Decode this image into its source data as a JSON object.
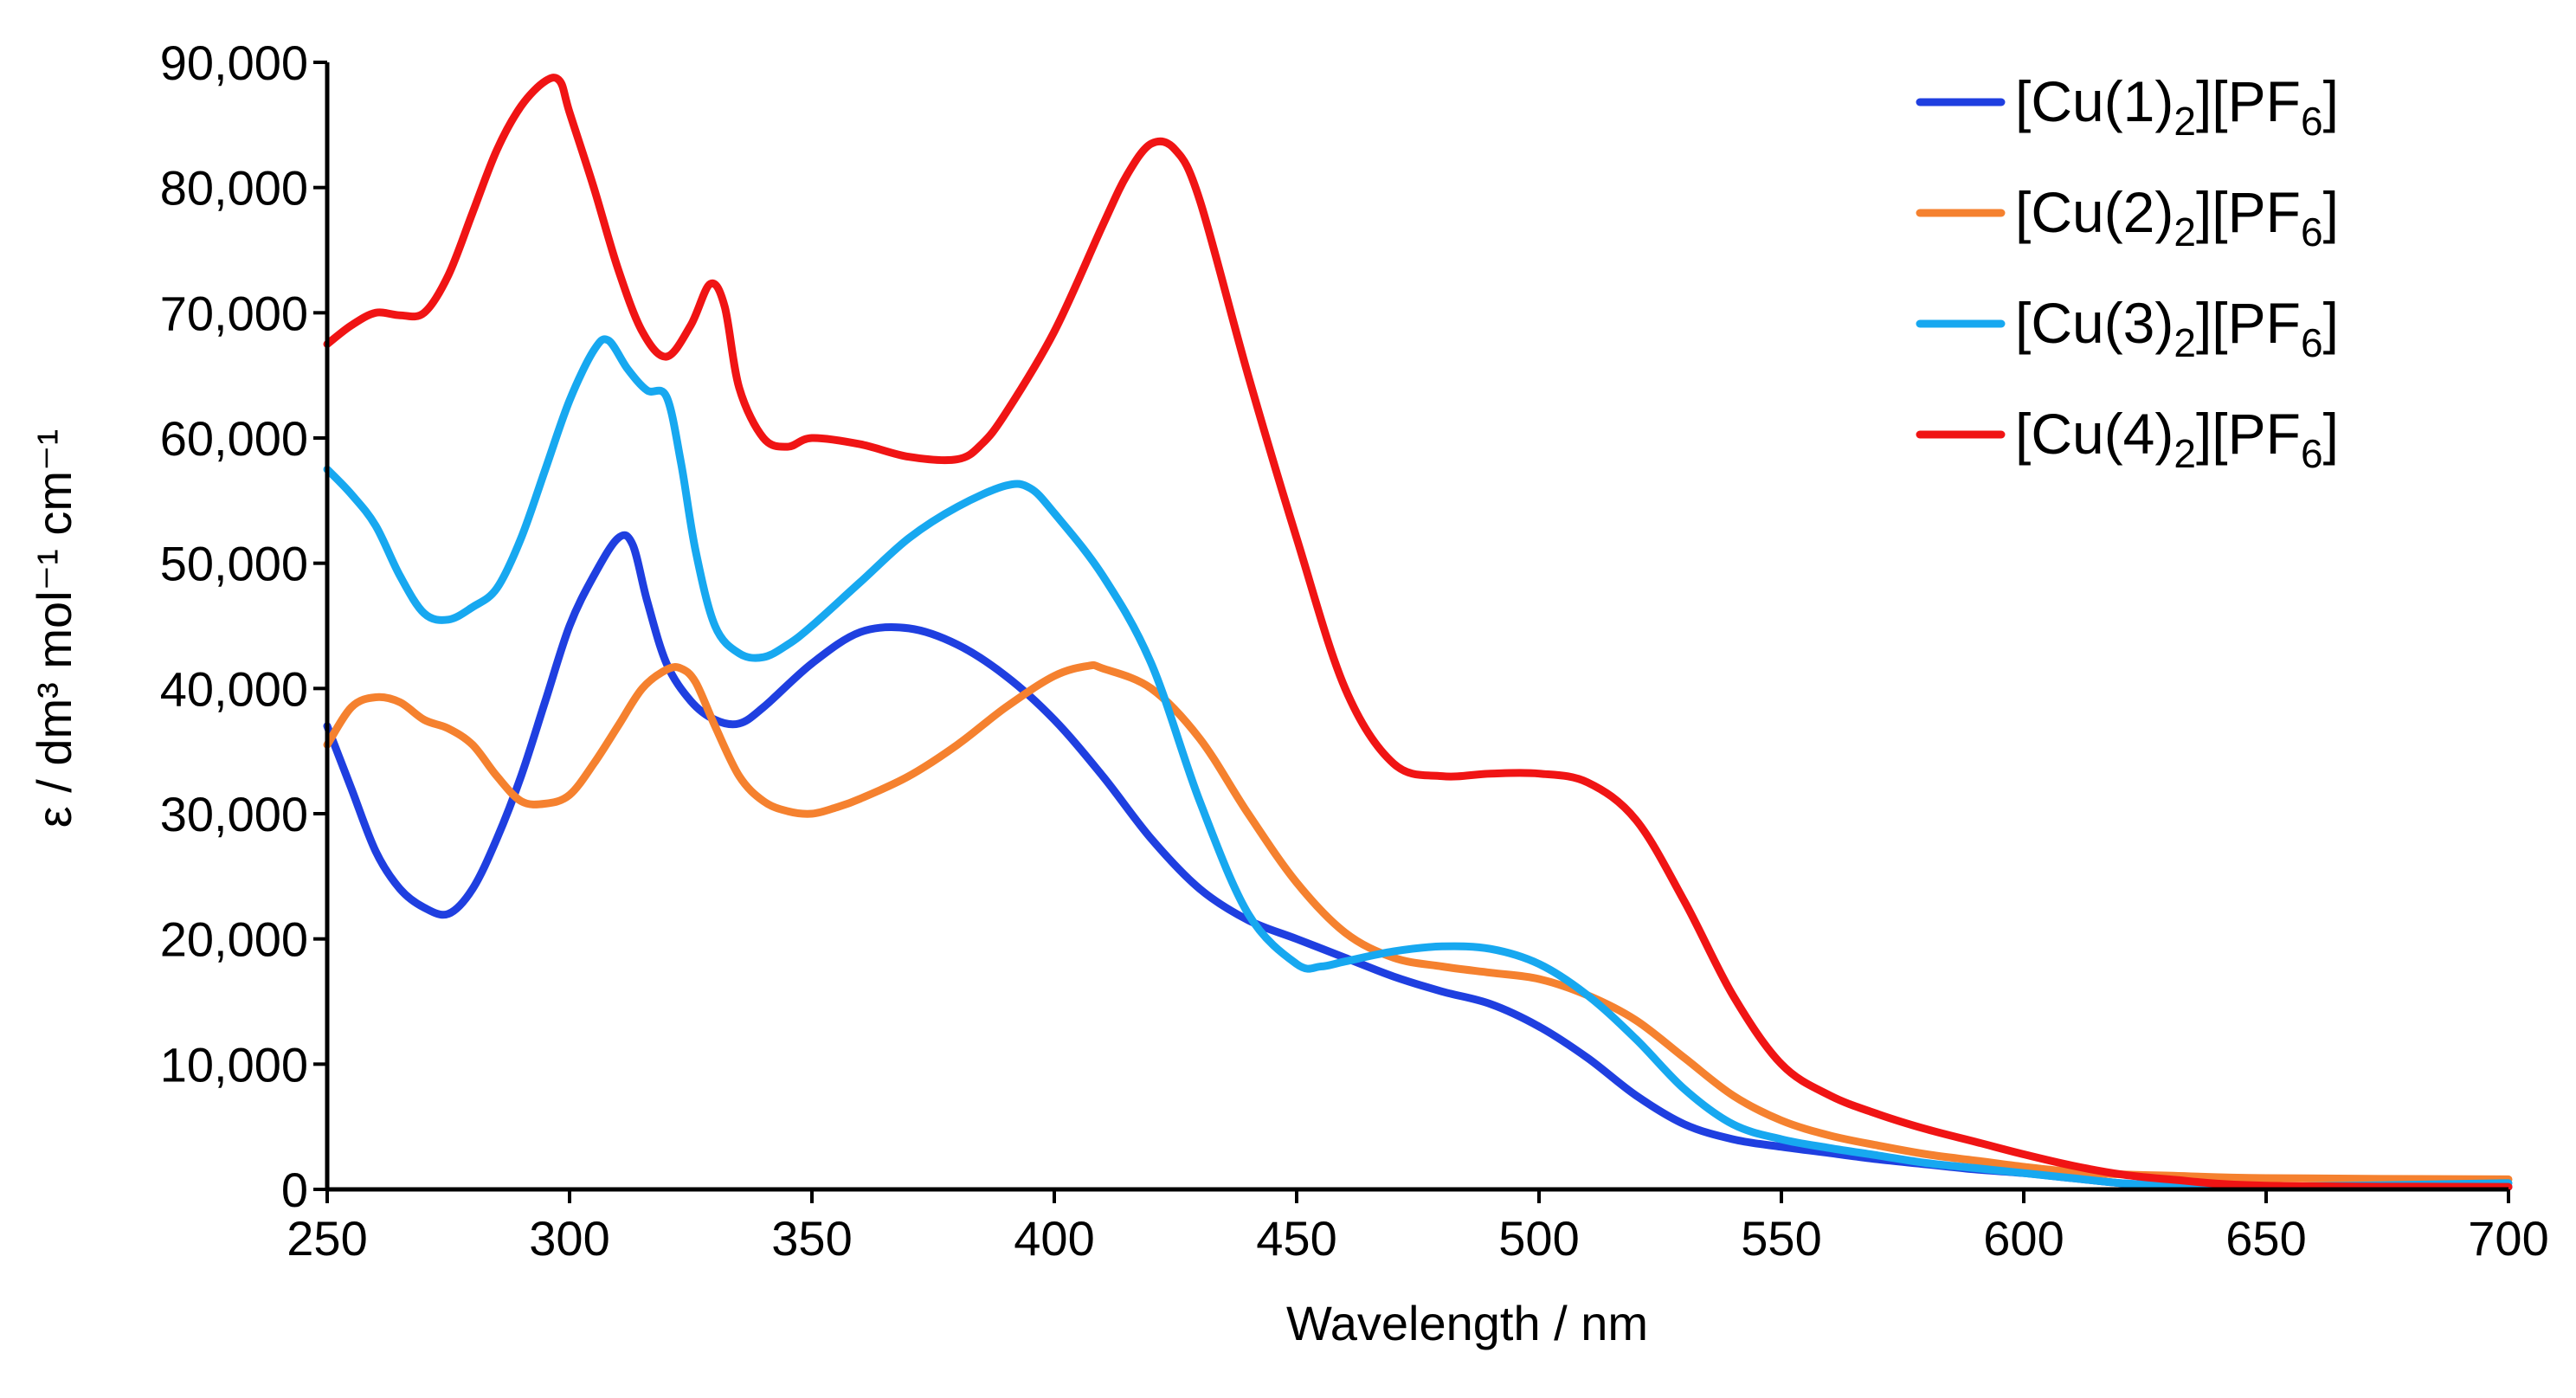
{
  "chart_data": {
    "type": "line",
    "title": "",
    "xlabel": "Wavelength /  nm",
    "ylabel": "ε / dm³ mol⁻¹ cm⁻¹",
    "xlim": [
      250,
      700
    ],
    "ylim": [
      0,
      90000
    ],
    "x_ticks": [
      250,
      300,
      350,
      400,
      450,
      500,
      550,
      600,
      650,
      700
    ],
    "x_tick_labels": [
      "250",
      "300",
      "350",
      "400",
      "450",
      "500",
      "550",
      "600",
      "650",
      "700"
    ],
    "y_ticks": [
      0,
      10000,
      20000,
      30000,
      40000,
      50000,
      60000,
      70000,
      80000,
      90000
    ],
    "y_tick_labels": [
      "0",
      "10,000",
      "20,000",
      "30,000",
      "40,000",
      "50,000",
      "60,000",
      "70,000",
      "80,000",
      "90,000"
    ],
    "grid": false,
    "legend_position": "top-right",
    "series": [
      {
        "name": "[Cu(1)2][PF6]",
        "label_main": "[Cu(1)",
        "label_sub": "2",
        "label_mid": "][PF",
        "label_sub2": "6",
        "label_end": "]",
        "color": "#1f3fe0",
        "points": [
          [
            250,
            37000
          ],
          [
            255,
            32000
          ],
          [
            260,
            27000
          ],
          [
            265,
            24000
          ],
          [
            270,
            22500
          ],
          [
            275,
            22000
          ],
          [
            280,
            24000
          ],
          [
            285,
            28000
          ],
          [
            290,
            33000
          ],
          [
            295,
            39000
          ],
          [
            300,
            45000
          ],
          [
            305,
            49000
          ],
          [
            310,
            52000
          ],
          [
            313,
            51500
          ],
          [
            316,
            47000
          ],
          [
            320,
            42000
          ],
          [
            325,
            39000
          ],
          [
            330,
            37500
          ],
          [
            335,
            37200
          ],
          [
            340,
            38500
          ],
          [
            350,
            42000
          ],
          [
            360,
            44500
          ],
          [
            370,
            44800
          ],
          [
            380,
            43500
          ],
          [
            390,
            41000
          ],
          [
            400,
            37500
          ],
          [
            410,
            33000
          ],
          [
            420,
            28000
          ],
          [
            430,
            24000
          ],
          [
            440,
            21500
          ],
          [
            450,
            20000
          ],
          [
            460,
            18500
          ],
          [
            470,
            17000
          ],
          [
            480,
            15800
          ],
          [
            490,
            14800
          ],
          [
            500,
            13000
          ],
          [
            510,
            10500
          ],
          [
            520,
            7500
          ],
          [
            530,
            5200
          ],
          [
            540,
            4000
          ],
          [
            550,
            3400
          ],
          [
            560,
            2900
          ],
          [
            570,
            2400
          ],
          [
            580,
            2000
          ],
          [
            590,
            1600
          ],
          [
            600,
            1300
          ],
          [
            610,
            900
          ],
          [
            620,
            500
          ],
          [
            630,
            300
          ],
          [
            650,
            200
          ],
          [
            700,
            200
          ]
        ]
      },
      {
        "name": "[Cu(2)2][PF6]",
        "label_main": "[Cu(2)",
        "label_sub": "2",
        "label_mid": "][PF",
        "label_sub2": "6",
        "label_end": "]",
        "color": "#f5812f",
        "points": [
          [
            250,
            35500
          ],
          [
            255,
            38500
          ],
          [
            260,
            39300
          ],
          [
            265,
            38900
          ],
          [
            270,
            37500
          ],
          [
            275,
            36800
          ],
          [
            280,
            35500
          ],
          [
            285,
            33000
          ],
          [
            290,
            31000
          ],
          [
            295,
            30800
          ],
          [
            300,
            31500
          ],
          [
            305,
            34000
          ],
          [
            310,
            37000
          ],
          [
            315,
            40000
          ],
          [
            320,
            41500
          ],
          [
            323,
            41600
          ],
          [
            326,
            40500
          ],
          [
            330,
            37000
          ],
          [
            335,
            33000
          ],
          [
            340,
            31000
          ],
          [
            345,
            30200
          ],
          [
            350,
            30000
          ],
          [
            355,
            30500
          ],
          [
            360,
            31200
          ],
          [
            370,
            33000
          ],
          [
            380,
            35500
          ],
          [
            390,
            38500
          ],
          [
            400,
            41000
          ],
          [
            407,
            41800
          ],
          [
            410,
            41600
          ],
          [
            420,
            40000
          ],
          [
            430,
            36000
          ],
          [
            440,
            30000
          ],
          [
            450,
            24500
          ],
          [
            460,
            20500
          ],
          [
            470,
            18500
          ],
          [
            480,
            17800
          ],
          [
            490,
            17300
          ],
          [
            500,
            16800
          ],
          [
            510,
            15500
          ],
          [
            520,
            13500
          ],
          [
            530,
            10500
          ],
          [
            540,
            7500
          ],
          [
            550,
            5500
          ],
          [
            560,
            4300
          ],
          [
            570,
            3500
          ],
          [
            580,
            2800
          ],
          [
            590,
            2300
          ],
          [
            600,
            1800
          ],
          [
            610,
            1400
          ],
          [
            620,
            1200
          ],
          [
            630,
            1100
          ],
          [
            650,
            900
          ],
          [
            700,
            800
          ]
        ]
      },
      {
        "name": "[Cu(3)2][PF6]",
        "label_main": "[Cu(3)",
        "label_sub": "2",
        "label_mid": "][PF",
        "label_sub2": "6",
        "label_end": "]",
        "color": "#17a8f0",
        "points": [
          [
            250,
            57500
          ],
          [
            255,
            55500
          ],
          [
            260,
            53000
          ],
          [
            265,
            49000
          ],
          [
            270,
            46000
          ],
          [
            275,
            45500
          ],
          [
            280,
            46500
          ],
          [
            285,
            48000
          ],
          [
            290,
            52000
          ],
          [
            295,
            57500
          ],
          [
            300,
            63000
          ],
          [
            305,
            67000
          ],
          [
            308,
            67800
          ],
          [
            312,
            65500
          ],
          [
            316,
            63800
          ],
          [
            320,
            63300
          ],
          [
            323,
            58000
          ],
          [
            326,
            51000
          ],
          [
            330,
            45000
          ],
          [
            335,
            42800
          ],
          [
            340,
            42500
          ],
          [
            345,
            43500
          ],
          [
            350,
            45000
          ],
          [
            360,
            48500
          ],
          [
            370,
            52000
          ],
          [
            380,
            54500
          ],
          [
            390,
            56200
          ],
          [
            395,
            56000
          ],
          [
            400,
            54000
          ],
          [
            410,
            49000
          ],
          [
            420,
            42000
          ],
          [
            430,
            31000
          ],
          [
            440,
            22000
          ],
          [
            450,
            18000
          ],
          [
            455,
            17800
          ],
          [
            460,
            18200
          ],
          [
            470,
            19000
          ],
          [
            480,
            19400
          ],
          [
            490,
            19200
          ],
          [
            500,
            18000
          ],
          [
            510,
            15500
          ],
          [
            520,
            12000
          ],
          [
            530,
            8000
          ],
          [
            540,
            5200
          ],
          [
            550,
            4000
          ],
          [
            560,
            3300
          ],
          [
            570,
            2700
          ],
          [
            580,
            2100
          ],
          [
            590,
            1700
          ],
          [
            600,
            1300
          ],
          [
            610,
            900
          ],
          [
            620,
            500
          ],
          [
            630,
            300
          ],
          [
            650,
            200
          ],
          [
            700,
            500
          ]
        ]
      },
      {
        "name": "[Cu(4)2][PF6]",
        "label_main": "[Cu(4)",
        "label_sub": "2",
        "label_mid": "][PF",
        "label_sub2": "6",
        "label_end": "]",
        "color": "#f01414",
        "points": [
          [
            250,
            67500
          ],
          [
            255,
            69000
          ],
          [
            260,
            70000
          ],
          [
            265,
            69800
          ],
          [
            270,
            70000
          ],
          [
            275,
            73000
          ],
          [
            280,
            78000
          ],
          [
            285,
            83000
          ],
          [
            290,
            86500
          ],
          [
            295,
            88500
          ],
          [
            298,
            88500
          ],
          [
            300,
            86000
          ],
          [
            305,
            80000
          ],
          [
            310,
            73500
          ],
          [
            315,
            68500
          ],
          [
            320,
            66500
          ],
          [
            325,
            69000
          ],
          [
            329,
            72300
          ],
          [
            332,
            70500
          ],
          [
            335,
            64000
          ],
          [
            340,
            60000
          ],
          [
            345,
            59300
          ],
          [
            350,
            60000
          ],
          [
            360,
            59500
          ],
          [
            370,
            58500
          ],
          [
            380,
            58300
          ],
          [
            385,
            59500
          ],
          [
            390,
            62000
          ],
          [
            400,
            68500
          ],
          [
            410,
            77000
          ],
          [
            415,
            81000
          ],
          [
            420,
            83500
          ],
          [
            425,
            83000
          ],
          [
            430,
            79000
          ],
          [
            440,
            65000
          ],
          [
            450,
            52000
          ],
          [
            460,
            40000
          ],
          [
            470,
            34000
          ],
          [
            480,
            33000
          ],
          [
            490,
            33200
          ],
          [
            500,
            33200
          ],
          [
            510,
            32500
          ],
          [
            520,
            29500
          ],
          [
            530,
            23000
          ],
          [
            540,
            15500
          ],
          [
            550,
            10000
          ],
          [
            560,
            7500
          ],
          [
            570,
            6000
          ],
          [
            580,
            4800
          ],
          [
            590,
            3800
          ],
          [
            600,
            2800
          ],
          [
            610,
            1900
          ],
          [
            620,
            1200
          ],
          [
            630,
            800
          ],
          [
            650,
            300
          ],
          [
            700,
            200
          ]
        ]
      }
    ]
  }
}
